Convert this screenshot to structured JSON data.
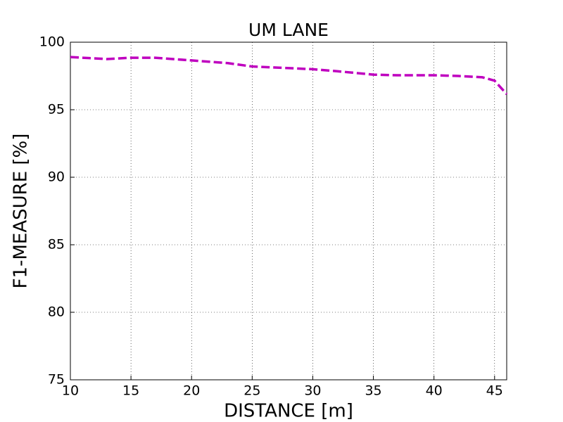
{
  "chart_data": {
    "type": "line",
    "title": "UM LANE",
    "x_label": "DISTANCE [m]",
    "y_label": "F1-MEASURE [%]",
    "x": [
      10,
      13,
      15,
      17,
      20,
      23,
      25,
      30,
      32,
      35,
      37,
      40,
      42,
      44,
      45,
      46
    ],
    "series": [
      {
        "color": "#bf00bf",
        "values": [
          98.9,
          98.75,
          98.85,
          98.85,
          98.65,
          98.45,
          98.2,
          98.0,
          97.85,
          97.6,
          97.55,
          97.55,
          97.5,
          97.4,
          97.15,
          96.15
        ]
      }
    ],
    "xlim": [
      10,
      46
    ],
    "ylim": [
      75,
      100
    ],
    "xticks": [
      10,
      15,
      20,
      25,
      30,
      35,
      40,
      45
    ],
    "yticks": [
      75,
      80,
      85,
      90,
      95,
      100
    ],
    "grid": true
  }
}
